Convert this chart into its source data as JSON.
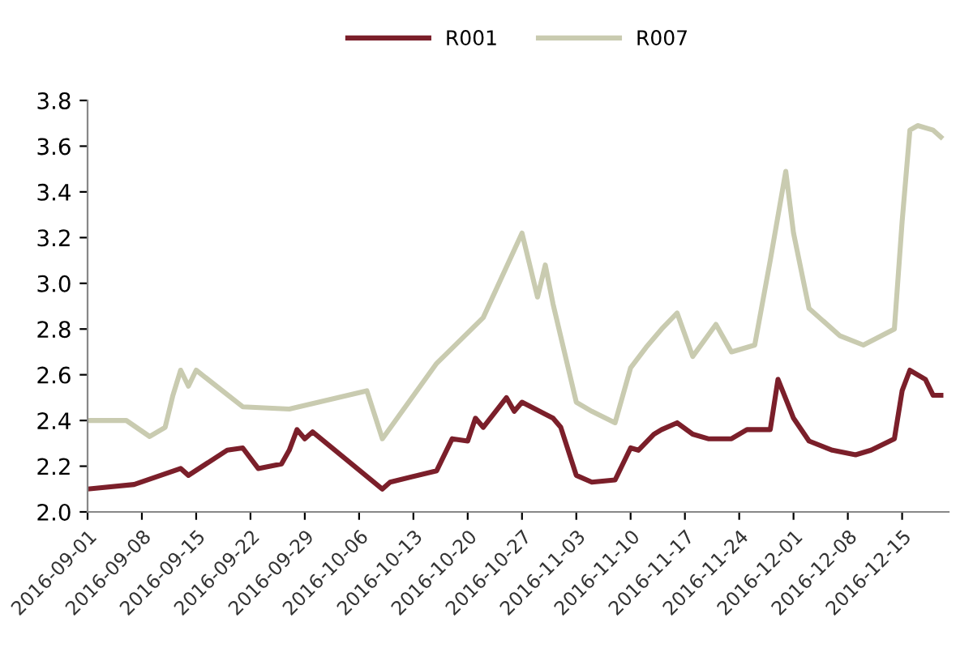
{
  "chart_data": {
    "type": "line",
    "legend": "top",
    "grid": false,
    "marker": "none",
    "line_style": "solid",
    "xlim": [
      "2016-09-01",
      "2016-12-21"
    ],
    "ylim": [
      2.0,
      3.8
    ],
    "yticks": [
      {
        "value": 2,
        "label": "2.0"
      },
      2.2,
      2.4,
      2.6,
      2.8,
      {
        "value": 3,
        "label": "3.0"
      },
      3.2,
      3.4,
      3.6,
      3.8
    ],
    "xticks": [
      "2016-09-01",
      "2016-09-08",
      "2016-09-15",
      "2016-09-22",
      "2016-09-29",
      "2016-10-06",
      "2016-10-13",
      "2016-10-20",
      "2016-10-27",
      "2016-11-03",
      "2016-11-10",
      "2016-11-17",
      "2016-11-24",
      "2016-12-01",
      "2016-12-08",
      "2016-12-15"
    ],
    "series": [
      {
        "name": "R001",
        "color": "#7b1f2a",
        "x": [
          "2016-09-01",
          "2016-09-07",
          "2016-09-13",
          "2016-09-14",
          "2016-09-19",
          "2016-09-21",
          "2016-09-23",
          "2016-09-26",
          "2016-09-27",
          "2016-09-28",
          "2016-09-29",
          "2016-09-30",
          "2016-10-09",
          "2016-10-10",
          "2016-10-16",
          "2016-10-18",
          "2016-10-20",
          "2016-10-21",
          "2016-10-22",
          "2016-10-25",
          "2016-10-26",
          "2016-10-27",
          "2016-10-31",
          "2016-11-01",
          "2016-11-03",
          "2016-11-05",
          "2016-11-08",
          "2016-11-10",
          "2016-11-11",
          "2016-11-13",
          "2016-11-14",
          "2016-11-16",
          "2016-11-18",
          "2016-11-20",
          "2016-11-23",
          "2016-11-25",
          "2016-11-28",
          "2016-11-29",
          "2016-12-01",
          "2016-12-03",
          "2016-12-06",
          "2016-12-09",
          "2016-12-11",
          "2016-12-14",
          "2016-12-15",
          "2016-12-16",
          "2016-12-18",
          "2016-12-19",
          "2016-12-20"
        ],
        "values": [
          2.1,
          2.12,
          2.19,
          2.16,
          2.27,
          2.28,
          2.19,
          2.21,
          2.27,
          2.36,
          2.32,
          2.35,
          2.1,
          2.13,
          2.18,
          2.32,
          2.31,
          2.41,
          2.37,
          2.5,
          2.44,
          2.48,
          2.41,
          2.37,
          2.16,
          2.13,
          2.14,
          2.28,
          2.27,
          2.34,
          2.36,
          2.39,
          2.34,
          2.32,
          2.32,
          2.36,
          2.36,
          2.58,
          2.41,
          2.31,
          2.27,
          2.25,
          2.27,
          2.32,
          2.53,
          2.62,
          2.58,
          2.51,
          2.51
        ]
      },
      {
        "name": "R007",
        "color": "#c9cbb0",
        "x": [
          "2016-09-01",
          "2016-09-06",
          "2016-09-09",
          "2016-09-11",
          "2016-09-12",
          "2016-09-13",
          "2016-09-14",
          "2016-09-15",
          "2016-09-21",
          "2016-09-27",
          "2016-10-07",
          "2016-10-09",
          "2016-10-16",
          "2016-10-22",
          "2016-10-27",
          "2016-10-29",
          "2016-10-30",
          "2016-10-31",
          "2016-11-03",
          "2016-11-05",
          "2016-11-08",
          "2016-11-10",
          "2016-11-12",
          "2016-11-14",
          "2016-11-16",
          "2016-11-18",
          "2016-11-21",
          "2016-11-23",
          "2016-11-26",
          "2016-11-28",
          "2016-11-30",
          "2016-12-01",
          "2016-12-03",
          "2016-12-07",
          "2016-12-10",
          "2016-12-14",
          "2016-12-15",
          "2016-12-16",
          "2016-12-17",
          "2016-12-19",
          "2016-12-20"
        ],
        "values": [
          2.4,
          2.4,
          2.33,
          2.37,
          2.51,
          2.62,
          2.55,
          2.62,
          2.46,
          2.45,
          2.53,
          2.32,
          2.65,
          2.85,
          3.22,
          2.94,
          3.08,
          2.91,
          2.48,
          2.44,
          2.39,
          2.63,
          2.72,
          2.8,
          2.87,
          2.68,
          2.82,
          2.7,
          2.73,
          3.1,
          3.49,
          3.22,
          2.89,
          2.77,
          2.73,
          2.8,
          3.27,
          3.67,
          3.69,
          3.67,
          3.64
        ]
      }
    ]
  }
}
